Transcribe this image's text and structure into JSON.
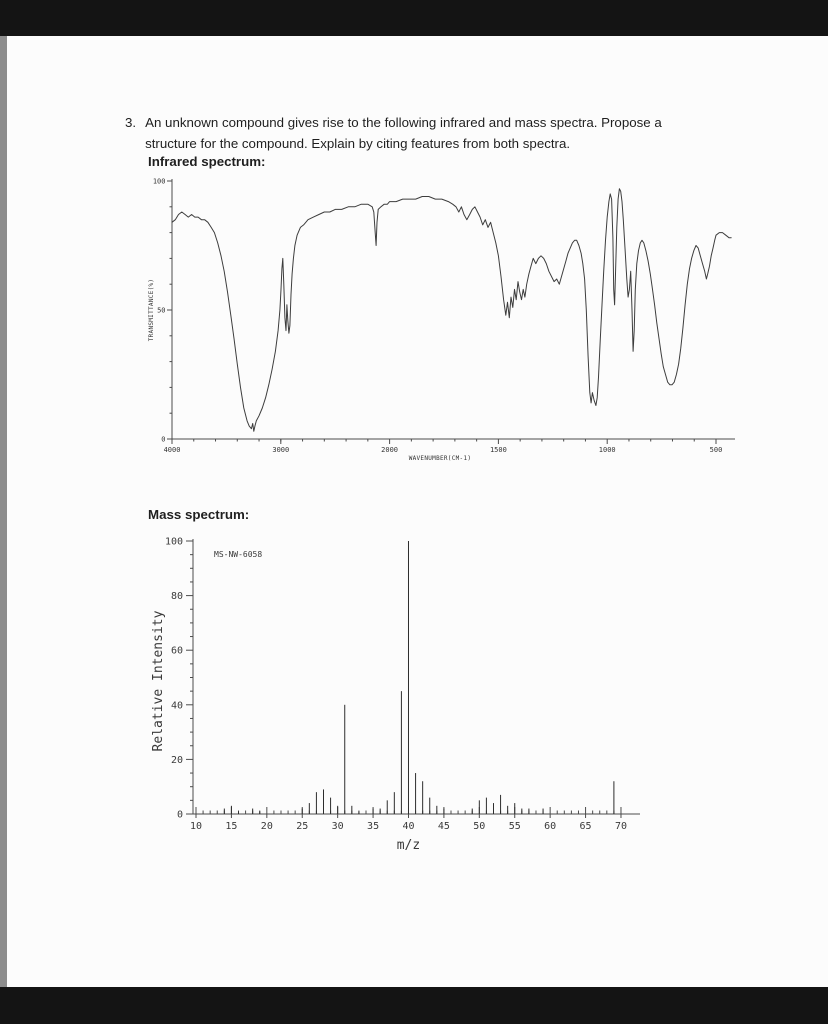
{
  "page": {
    "question_number": "3.",
    "question_line1": "An unknown compound gives rise to the following infrared and mass spectra.  Propose a",
    "question_line2": "structure for the compound.  Explain by citing features from both spectra.",
    "ir_heading": "Infrared spectrum:",
    "ms_heading": "Mass spectrum:"
  },
  "chart_data": [
    {
      "type": "line",
      "name": "infrared-spectrum",
      "xlabel": "WAVENUMBER(CM-1)",
      "ylabel": "TRANSMITTANCE(%)",
      "x_ticks": [
        4000,
        3000,
        2000,
        1500,
        1000,
        500
      ],
      "y_ticks": [
        0,
        50,
        100
      ],
      "ylim": [
        0,
        100
      ],
      "x_scale_note": "equal tick spacing: 1000 per division above 2000 cm-1, 500 per division below",
      "points": [
        [
          4000,
          84
        ],
        [
          3970,
          85
        ],
        [
          3940,
          87
        ],
        [
          3910,
          88
        ],
        [
          3880,
          87
        ],
        [
          3850,
          86
        ],
        [
          3820,
          87
        ],
        [
          3790,
          86
        ],
        [
          3760,
          86
        ],
        [
          3730,
          85
        ],
        [
          3700,
          85
        ],
        [
          3670,
          84
        ],
        [
          3640,
          82
        ],
        [
          3610,
          80
        ],
        [
          3580,
          76
        ],
        [
          3550,
          71
        ],
        [
          3520,
          65
        ],
        [
          3490,
          57
        ],
        [
          3460,
          48
        ],
        [
          3430,
          39
        ],
        [
          3400,
          29
        ],
        [
          3370,
          20
        ],
        [
          3340,
          12
        ],
        [
          3310,
          7
        ],
        [
          3290,
          5
        ],
        [
          3270,
          4
        ],
        [
          3258,
          6
        ],
        [
          3248,
          3
        ],
        [
          3238,
          5
        ],
        [
          3225,
          7
        ],
        [
          3200,
          9
        ],
        [
          3170,
          12
        ],
        [
          3140,
          16
        ],
        [
          3110,
          21
        ],
        [
          3080,
          27
        ],
        [
          3050,
          34
        ],
        [
          3025,
          42
        ],
        [
          3008,
          50
        ],
        [
          2998,
          58
        ],
        [
          2990,
          66
        ],
        [
          2982,
          70
        ],
        [
          2972,
          60
        ],
        [
          2962,
          47
        ],
        [
          2952,
          42
        ],
        [
          2944,
          52
        ],
        [
          2936,
          46
        ],
        [
          2926,
          41
        ],
        [
          2916,
          44
        ],
        [
          2906,
          56
        ],
        [
          2896,
          64
        ],
        [
          2884,
          70
        ],
        [
          2870,
          75
        ],
        [
          2850,
          79
        ],
        [
          2820,
          82
        ],
        [
          2790,
          83
        ],
        [
          2750,
          85
        ],
        [
          2700,
          86
        ],
        [
          2650,
          87
        ],
        [
          2600,
          88
        ],
        [
          2550,
          88
        ],
        [
          2500,
          89
        ],
        [
          2440,
          89
        ],
        [
          2380,
          90
        ],
        [
          2320,
          90
        ],
        [
          2260,
          91
        ],
        [
          2200,
          91
        ],
        [
          2160,
          90
        ],
        [
          2145,
          88
        ],
        [
          2132,
          80
        ],
        [
          2124,
          75
        ],
        [
          2116,
          84
        ],
        [
          2105,
          89
        ],
        [
          2080,
          90
        ],
        [
          2050,
          91
        ],
        [
          2020,
          91
        ],
        [
          2000,
          92
        ],
        [
          1970,
          92
        ],
        [
          1940,
          93
        ],
        [
          1910,
          93
        ],
        [
          1880,
          93
        ],
        [
          1850,
          94
        ],
        [
          1820,
          94
        ],
        [
          1790,
          93
        ],
        [
          1760,
          93
        ],
        [
          1730,
          92
        ],
        [
          1710,
          91
        ],
        [
          1695,
          90
        ],
        [
          1682,
          88
        ],
        [
          1670,
          90
        ],
        [
          1658,
          87
        ],
        [
          1645,
          85
        ],
        [
          1632,
          87
        ],
        [
          1620,
          89
        ],
        [
          1608,
          90
        ],
        [
          1596,
          88
        ],
        [
          1584,
          86
        ],
        [
          1572,
          83
        ],
        [
          1560,
          85
        ],
        [
          1548,
          82
        ],
        [
          1536,
          84
        ],
        [
          1524,
          80
        ],
        [
          1512,
          76
        ],
        [
          1500,
          71
        ],
        [
          1488,
          63
        ],
        [
          1476,
          54
        ],
        [
          1466,
          48
        ],
        [
          1458,
          53
        ],
        [
          1450,
          47
        ],
        [
          1442,
          55
        ],
        [
          1434,
          51
        ],
        [
          1426,
          58
        ],
        [
          1418,
          54
        ],
        [
          1410,
          61
        ],
        [
          1402,
          57
        ],
        [
          1394,
          54
        ],
        [
          1386,
          58
        ],
        [
          1378,
          55
        ],
        [
          1370,
          60
        ],
        [
          1360,
          64
        ],
        [
          1350,
          67
        ],
        [
          1340,
          70
        ],
        [
          1328,
          68
        ],
        [
          1316,
          70
        ],
        [
          1304,
          71
        ],
        [
          1292,
          70
        ],
        [
          1280,
          68
        ],
        [
          1268,
          65
        ],
        [
          1256,
          63
        ],
        [
          1244,
          61
        ],
        [
          1232,
          62
        ],
        [
          1220,
          60
        ],
        [
          1210,
          63
        ],
        [
          1200,
          66
        ],
        [
          1190,
          69
        ],
        [
          1180,
          72
        ],
        [
          1170,
          74
        ],
        [
          1160,
          76
        ],
        [
          1150,
          77
        ],
        [
          1140,
          77
        ],
        [
          1130,
          75
        ],
        [
          1120,
          72
        ],
        [
          1112,
          68
        ],
        [
          1104,
          62
        ],
        [
          1096,
          50
        ],
        [
          1088,
          32
        ],
        [
          1080,
          18
        ],
        [
          1074,
          14
        ],
        [
          1068,
          18
        ],
        [
          1060,
          15
        ],
        [
          1052,
          13
        ],
        [
          1046,
          16
        ],
        [
          1040,
          24
        ],
        [
          1032,
          38
        ],
        [
          1024,
          52
        ],
        [
          1016,
          65
        ],
        [
          1008,
          77
        ],
        [
          1000,
          86
        ],
        [
          992,
          92
        ],
        [
          986,
          95
        ],
        [
          980,
          93
        ],
        [
          974,
          78
        ],
        [
          970,
          58
        ],
        [
          966,
          52
        ],
        [
          962,
          64
        ],
        [
          956,
          82
        ],
        [
          950,
          93
        ],
        [
          944,
          97
        ],
        [
          938,
          96
        ],
        [
          932,
          92
        ],
        [
          926,
          85
        ],
        [
          918,
          74
        ],
        [
          910,
          62
        ],
        [
          904,
          55
        ],
        [
          898,
          58
        ],
        [
          892,
          65
        ],
        [
          886,
          50
        ],
        [
          881,
          34
        ],
        [
          876,
          42
        ],
        [
          871,
          58
        ],
        [
          864,
          68
        ],
        [
          856,
          73
        ],
        [
          848,
          76
        ],
        [
          840,
          77
        ],
        [
          832,
          76
        ],
        [
          822,
          73
        ],
        [
          812,
          69
        ],
        [
          802,
          64
        ],
        [
          792,
          58
        ],
        [
          782,
          52
        ],
        [
          772,
          45
        ],
        [
          762,
          39
        ],
        [
          752,
          33
        ],
        [
          742,
          28
        ],
        [
          732,
          25
        ],
        [
          722,
          22
        ],
        [
          712,
          21
        ],
        [
          702,
          21
        ],
        [
          692,
          22
        ],
        [
          682,
          25
        ],
        [
          672,
          29
        ],
        [
          662,
          35
        ],
        [
          652,
          43
        ],
        [
          642,
          52
        ],
        [
          632,
          60
        ],
        [
          622,
          66
        ],
        [
          612,
          70
        ],
        [
          602,
          73
        ],
        [
          592,
          75
        ],
        [
          582,
          74
        ],
        [
          572,
          71
        ],
        [
          562,
          68
        ],
        [
          552,
          65
        ],
        [
          544,
          62
        ],
        [
          538,
          64
        ],
        [
          530,
          67
        ],
        [
          522,
          71
        ],
        [
          514,
          74
        ],
        [
          506,
          77
        ],
        [
          500,
          79
        ],
        [
          485,
          80
        ],
        [
          470,
          80
        ],
        [
          455,
          79
        ],
        [
          440,
          78
        ],
        [
          430,
          78
        ]
      ]
    },
    {
      "type": "bar",
      "name": "mass-spectrum",
      "id_label": "MS-NW-6058",
      "xlabel": "m/z",
      "ylabel": "Relative Intensity",
      "x_ticks": [
        10,
        15,
        20,
        25,
        30,
        35,
        40,
        45,
        50,
        55,
        60,
        65,
        70
      ],
      "y_ticks": [
        0,
        20,
        40,
        60,
        80,
        100
      ],
      "xlim": [
        10,
        70
      ],
      "ylim": [
        0,
        100
      ],
      "peaks": [
        [
          14,
          2
        ],
        [
          15,
          3
        ],
        [
          16,
          1
        ],
        [
          18,
          2
        ],
        [
          19,
          1
        ],
        [
          25,
          2
        ],
        [
          26,
          4
        ],
        [
          27,
          8
        ],
        [
          28,
          9
        ],
        [
          29,
          6
        ],
        [
          30,
          3
        ],
        [
          31,
          40
        ],
        [
          32,
          3
        ],
        [
          33,
          1
        ],
        [
          35,
          2
        ],
        [
          36,
          2
        ],
        [
          37,
          5
        ],
        [
          38,
          8
        ],
        [
          39,
          45
        ],
        [
          40,
          100
        ],
        [
          41,
          15
        ],
        [
          42,
          12
        ],
        [
          43,
          6
        ],
        [
          44,
          3
        ],
        [
          45,
          2
        ],
        [
          49,
          2
        ],
        [
          50,
          5
        ],
        [
          51,
          6
        ],
        [
          52,
          4
        ],
        [
          53,
          7
        ],
        [
          54,
          3
        ],
        [
          55,
          4
        ],
        [
          56,
          2
        ],
        [
          57,
          2
        ],
        [
          59,
          2
        ],
        [
          69,
          12
        ]
      ]
    }
  ]
}
